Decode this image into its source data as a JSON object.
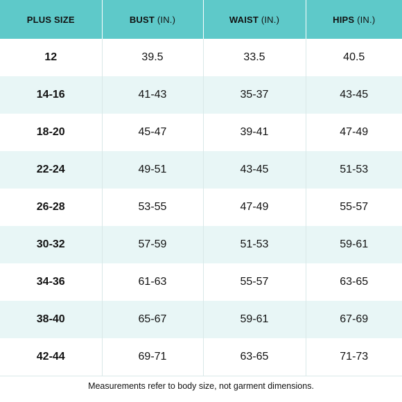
{
  "table": {
    "headers": [
      {
        "main": "PLUS SIZE",
        "unit": ""
      },
      {
        "main": "BUST",
        "unit": " (IN.)"
      },
      {
        "main": "WAIST",
        "unit": " (IN.)"
      },
      {
        "main": "HIPS",
        "unit": " (IN.)"
      }
    ],
    "rows": [
      {
        "size": "12",
        "bust": "39.5",
        "waist": "33.5",
        "hips": "40.5"
      },
      {
        "size": "14-16",
        "bust": "41-43",
        "waist": "35-37",
        "hips": "43-45"
      },
      {
        "size": "18-20",
        "bust": "45-47",
        "waist": "39-41",
        "hips": "47-49"
      },
      {
        "size": "22-24",
        "bust": "49-51",
        "waist": "43-45",
        "hips": "51-53"
      },
      {
        "size": "26-28",
        "bust": "53-55",
        "waist": "47-49",
        "hips": "55-57"
      },
      {
        "size": "30-32",
        "bust": "57-59",
        "waist": "51-53",
        "hips": "59-61"
      },
      {
        "size": "34-36",
        "bust": "61-63",
        "waist": "55-57",
        "hips": "63-65"
      },
      {
        "size": "38-40",
        "bust": "65-67",
        "waist": "59-61",
        "hips": "67-69"
      },
      {
        "size": "42-44",
        "bust": "69-71",
        "waist": "63-65",
        "hips": "71-73"
      }
    ]
  },
  "footnote": "Measurements refer to body size, not garment dimensions.",
  "colors": {
    "header": "#5ec9c9",
    "stripe": "#e8f6f6"
  }
}
